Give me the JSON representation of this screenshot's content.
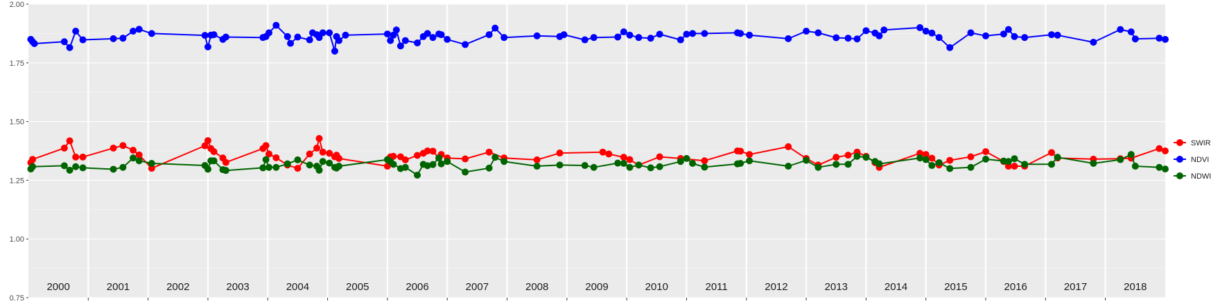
{
  "chart_data": {
    "type": "line",
    "ylim": [
      0.75,
      2.0
    ],
    "y_ticks": [
      "0.75",
      "1.00",
      "1.25",
      "1.50",
      "1.75",
      "2.00"
    ],
    "y_tick_values": [
      0.75,
      1.0,
      1.25,
      1.5,
      1.75,
      2.0
    ],
    "xlim": [
      2000,
      2019
    ],
    "year_labels": [
      "2000",
      "2001",
      "2002",
      "2003",
      "2004",
      "2005",
      "2006",
      "2007",
      "2008",
      "2009",
      "2010",
      "2011",
      "2012",
      "2013",
      "2014",
      "2015",
      "2016",
      "2017",
      "2018"
    ],
    "year_label_positions": [
      2000.5,
      2001.5,
      2002.5,
      2003.5,
      2004.5,
      2005.5,
      2006.5,
      2007.5,
      2008.5,
      2009.5,
      2010.5,
      2011.5,
      2012.5,
      2013.5,
      2014.5,
      2015.5,
      2016.5,
      2017.5,
      2018.5
    ],
    "year_boundaries": [
      2001,
      2002,
      2003,
      2004,
      2005,
      2006,
      2007,
      2008,
      2009,
      2010,
      2011,
      2012,
      2013,
      2014,
      2015,
      2016,
      2017,
      2018
    ],
    "grid": true,
    "legend_position": "right",
    "background": "#ebebeb",
    "series": [
      {
        "name": "SWIR",
        "color": "#ff0000",
        "points": [
          [
            2000.04,
            1.325
          ],
          [
            2000.07,
            1.339
          ],
          [
            2000.6,
            1.387
          ],
          [
            2000.69,
            1.418
          ],
          [
            2000.79,
            1.349
          ],
          [
            2000.91,
            1.349
          ],
          [
            2001.42,
            1.387
          ],
          [
            2001.58,
            1.398
          ],
          [
            2001.75,
            1.378
          ],
          [
            2001.85,
            1.358
          ],
          [
            2002.06,
            1.301
          ],
          [
            2002.95,
            1.397
          ],
          [
            2003.0,
            1.419
          ],
          [
            2003.05,
            1.385
          ],
          [
            2003.1,
            1.372
          ],
          [
            2003.25,
            1.345
          ],
          [
            2003.3,
            1.326
          ],
          [
            2003.92,
            1.385
          ],
          [
            2003.97,
            1.398
          ],
          [
            2004.02,
            1.362
          ],
          [
            2004.14,
            1.346
          ],
          [
            2004.33,
            1.315
          ],
          [
            2004.5,
            1.301
          ],
          [
            2004.7,
            1.362
          ],
          [
            2004.82,
            1.387
          ],
          [
            2004.86,
            1.428
          ],
          [
            2004.92,
            1.37
          ],
          [
            2005.03,
            1.365
          ],
          [
            2005.12,
            1.35
          ],
          [
            2005.15,
            1.357
          ],
          [
            2005.19,
            1.343
          ],
          [
            2006.0,
            1.31
          ],
          [
            2006.05,
            1.35
          ],
          [
            2006.1,
            1.352
          ],
          [
            2006.22,
            1.35
          ],
          [
            2006.3,
            1.337
          ],
          [
            2006.5,
            1.356
          ],
          [
            2006.6,
            1.365
          ],
          [
            2006.67,
            1.375
          ],
          [
            2006.76,
            1.374
          ],
          [
            2006.86,
            1.345
          ],
          [
            2006.9,
            1.36
          ],
          [
            2007.0,
            1.345
          ],
          [
            2007.3,
            1.341
          ],
          [
            2007.7,
            1.37
          ],
          [
            2007.95,
            1.345
          ],
          [
            2008.5,
            1.337
          ],
          [
            2008.88,
            1.366
          ],
          [
            2009.6,
            1.37
          ],
          [
            2009.7,
            1.362
          ],
          [
            2009.95,
            1.348
          ],
          [
            2010.05,
            1.338
          ],
          [
            2010.2,
            1.315
          ],
          [
            2010.55,
            1.35
          ],
          [
            2010.9,
            1.343
          ],
          [
            2011.3,
            1.333
          ],
          [
            2011.85,
            1.375
          ],
          [
            2011.9,
            1.374
          ],
          [
            2012.05,
            1.36
          ],
          [
            2012.7,
            1.393
          ],
          [
            2013.0,
            1.343
          ],
          [
            2013.2,
            1.315
          ],
          [
            2013.5,
            1.348
          ],
          [
            2013.7,
            1.357
          ],
          [
            2013.85,
            1.37
          ],
          [
            2014.0,
            1.352
          ],
          [
            2014.15,
            1.325
          ],
          [
            2014.22,
            1.305
          ],
          [
            2014.9,
            1.365
          ],
          [
            2015.0,
            1.36
          ],
          [
            2015.1,
            1.344
          ],
          [
            2015.22,
            1.315
          ],
          [
            2015.4,
            1.335
          ],
          [
            2015.75,
            1.35
          ],
          [
            2016.0,
            1.372
          ],
          [
            2016.3,
            1.33
          ],
          [
            2016.38,
            1.31
          ],
          [
            2016.48,
            1.31
          ],
          [
            2016.65,
            1.31
          ],
          [
            2017.1,
            1.368
          ],
          [
            2017.2,
            1.345
          ],
          [
            2017.8,
            1.34
          ],
          [
            2018.25,
            1.342
          ],
          [
            2018.43,
            1.344
          ],
          [
            2018.9,
            1.385
          ],
          [
            2019.0,
            1.375
          ]
        ]
      },
      {
        "name": "NDVI",
        "color": "#0000ff",
        "points": [
          [
            2000.04,
            1.85
          ],
          [
            2000.07,
            1.84
          ],
          [
            2000.1,
            1.832
          ],
          [
            2000.6,
            1.84
          ],
          [
            2000.69,
            1.815
          ],
          [
            2000.79,
            1.885
          ],
          [
            2000.91,
            1.848
          ],
          [
            2001.42,
            1.853
          ],
          [
            2001.58,
            1.855
          ],
          [
            2001.75,
            1.885
          ],
          [
            2001.85,
            1.893
          ],
          [
            2002.06,
            1.875
          ],
          [
            2002.95,
            1.867
          ],
          [
            2003.0,
            1.818
          ],
          [
            2003.05,
            1.868
          ],
          [
            2003.1,
            1.87
          ],
          [
            2003.25,
            1.85
          ],
          [
            2003.3,
            1.86
          ],
          [
            2003.92,
            1.858
          ],
          [
            2003.97,
            1.862
          ],
          [
            2004.02,
            1.878
          ],
          [
            2004.14,
            1.91
          ],
          [
            2004.33,
            1.862
          ],
          [
            2004.38,
            1.833
          ],
          [
            2004.5,
            1.86
          ],
          [
            2004.7,
            1.848
          ],
          [
            2004.75,
            1.878
          ],
          [
            2004.82,
            1.87
          ],
          [
            2004.86,
            1.858
          ],
          [
            2004.92,
            1.878
          ],
          [
            2005.03,
            1.878
          ],
          [
            2005.12,
            1.8
          ],
          [
            2005.15,
            1.862
          ],
          [
            2005.19,
            1.845
          ],
          [
            2005.3,
            1.868
          ],
          [
            2006.0,
            1.873
          ],
          [
            2006.05,
            1.845
          ],
          [
            2006.1,
            1.868
          ],
          [
            2006.15,
            1.89
          ],
          [
            2006.22,
            1.822
          ],
          [
            2006.3,
            1.845
          ],
          [
            2006.5,
            1.835
          ],
          [
            2006.6,
            1.862
          ],
          [
            2006.67,
            1.875
          ],
          [
            2006.76,
            1.858
          ],
          [
            2006.86,
            1.873
          ],
          [
            2006.9,
            1.87
          ],
          [
            2007.0,
            1.85
          ],
          [
            2007.3,
            1.828
          ],
          [
            2007.7,
            1.87
          ],
          [
            2007.8,
            1.898
          ],
          [
            2007.95,
            1.858
          ],
          [
            2008.5,
            1.865
          ],
          [
            2008.88,
            1.862
          ],
          [
            2008.95,
            1.87
          ],
          [
            2009.3,
            1.848
          ],
          [
            2009.45,
            1.858
          ],
          [
            2009.85,
            1.86
          ],
          [
            2009.95,
            1.882
          ],
          [
            2010.05,
            1.868
          ],
          [
            2010.2,
            1.858
          ],
          [
            2010.4,
            1.855
          ],
          [
            2010.55,
            1.872
          ],
          [
            2010.9,
            1.848
          ],
          [
            2011.0,
            1.872
          ],
          [
            2011.1,
            1.875
          ],
          [
            2011.3,
            1.875
          ],
          [
            2011.85,
            1.878
          ],
          [
            2011.9,
            1.875
          ],
          [
            2012.05,
            1.868
          ],
          [
            2012.7,
            1.853
          ],
          [
            2013.0,
            1.885
          ],
          [
            2013.2,
            1.878
          ],
          [
            2013.5,
            1.857
          ],
          [
            2013.7,
            1.855
          ],
          [
            2013.85,
            1.852
          ],
          [
            2014.0,
            1.887
          ],
          [
            2014.15,
            1.877
          ],
          [
            2014.22,
            1.865
          ],
          [
            2014.3,
            1.89
          ],
          [
            2014.9,
            1.9
          ],
          [
            2015.0,
            1.885
          ],
          [
            2015.1,
            1.877
          ],
          [
            2015.22,
            1.858
          ],
          [
            2015.4,
            1.815
          ],
          [
            2015.75,
            1.878
          ],
          [
            2016.0,
            1.865
          ],
          [
            2016.3,
            1.873
          ],
          [
            2016.38,
            1.892
          ],
          [
            2016.48,
            1.862
          ],
          [
            2016.65,
            1.858
          ],
          [
            2017.1,
            1.87
          ],
          [
            2017.2,
            1.868
          ],
          [
            2017.8,
            1.838
          ],
          [
            2018.25,
            1.892
          ],
          [
            2018.43,
            1.882
          ],
          [
            2018.5,
            1.852
          ],
          [
            2018.9,
            1.855
          ],
          [
            2019.0,
            1.85
          ]
        ]
      },
      {
        "name": "NDWI",
        "color": "#006400",
        "points": [
          [
            2000.04,
            1.298
          ],
          [
            2000.07,
            1.308
          ],
          [
            2000.6,
            1.312
          ],
          [
            2000.69,
            1.293
          ],
          [
            2000.79,
            1.308
          ],
          [
            2000.91,
            1.303
          ],
          [
            2001.42,
            1.297
          ],
          [
            2001.58,
            1.305
          ],
          [
            2001.75,
            1.345
          ],
          [
            2001.85,
            1.333
          ],
          [
            2002.06,
            1.322
          ],
          [
            2002.95,
            1.313
          ],
          [
            2003.0,
            1.297
          ],
          [
            2003.05,
            1.333
          ],
          [
            2003.1,
            1.333
          ],
          [
            2003.25,
            1.295
          ],
          [
            2003.3,
            1.292
          ],
          [
            2003.92,
            1.303
          ],
          [
            2003.97,
            1.338
          ],
          [
            2004.02,
            1.305
          ],
          [
            2004.14,
            1.305
          ],
          [
            2004.33,
            1.32
          ],
          [
            2004.5,
            1.337
          ],
          [
            2004.7,
            1.315
          ],
          [
            2004.82,
            1.31
          ],
          [
            2004.86,
            1.293
          ],
          [
            2004.92,
            1.33
          ],
          [
            2005.03,
            1.323
          ],
          [
            2005.12,
            1.305
          ],
          [
            2005.15,
            1.302
          ],
          [
            2005.19,
            1.31
          ],
          [
            2006.0,
            1.338
          ],
          [
            2006.05,
            1.33
          ],
          [
            2006.1,
            1.318
          ],
          [
            2006.22,
            1.3
          ],
          [
            2006.3,
            1.305
          ],
          [
            2006.5,
            1.272
          ],
          [
            2006.6,
            1.318
          ],
          [
            2006.67,
            1.312
          ],
          [
            2006.76,
            1.317
          ],
          [
            2006.86,
            1.345
          ],
          [
            2006.9,
            1.32
          ],
          [
            2007.0,
            1.33
          ],
          [
            2007.3,
            1.285
          ],
          [
            2007.7,
            1.302
          ],
          [
            2007.8,
            1.348
          ],
          [
            2007.95,
            1.33
          ],
          [
            2008.5,
            1.31
          ],
          [
            2008.88,
            1.315
          ],
          [
            2009.3,
            1.313
          ],
          [
            2009.45,
            1.305
          ],
          [
            2009.85,
            1.323
          ],
          [
            2009.95,
            1.322
          ],
          [
            2010.05,
            1.305
          ],
          [
            2010.2,
            1.315
          ],
          [
            2010.4,
            1.303
          ],
          [
            2010.55,
            1.308
          ],
          [
            2010.9,
            1.33
          ],
          [
            2011.0,
            1.343
          ],
          [
            2011.1,
            1.322
          ],
          [
            2011.3,
            1.306
          ],
          [
            2011.85,
            1.32
          ],
          [
            2011.9,
            1.322
          ],
          [
            2012.05,
            1.333
          ],
          [
            2012.7,
            1.31
          ],
          [
            2013.0,
            1.335
          ],
          [
            2013.2,
            1.305
          ],
          [
            2013.5,
            1.318
          ],
          [
            2013.7,
            1.318
          ],
          [
            2013.85,
            1.352
          ],
          [
            2014.0,
            1.348
          ],
          [
            2014.15,
            1.33
          ],
          [
            2014.22,
            1.32
          ],
          [
            2014.9,
            1.345
          ],
          [
            2015.0,
            1.338
          ],
          [
            2015.1,
            1.313
          ],
          [
            2015.22,
            1.325
          ],
          [
            2015.4,
            1.3
          ],
          [
            2015.75,
            1.305
          ],
          [
            2016.0,
            1.34
          ],
          [
            2016.3,
            1.332
          ],
          [
            2016.38,
            1.33
          ],
          [
            2016.48,
            1.342
          ],
          [
            2016.65,
            1.318
          ],
          [
            2017.1,
            1.318
          ],
          [
            2017.2,
            1.348
          ],
          [
            2017.8,
            1.322
          ],
          [
            2018.25,
            1.338
          ],
          [
            2018.43,
            1.36
          ],
          [
            2018.5,
            1.31
          ],
          [
            2018.9,
            1.305
          ],
          [
            2019.0,
            1.298
          ]
        ]
      }
    ]
  }
}
